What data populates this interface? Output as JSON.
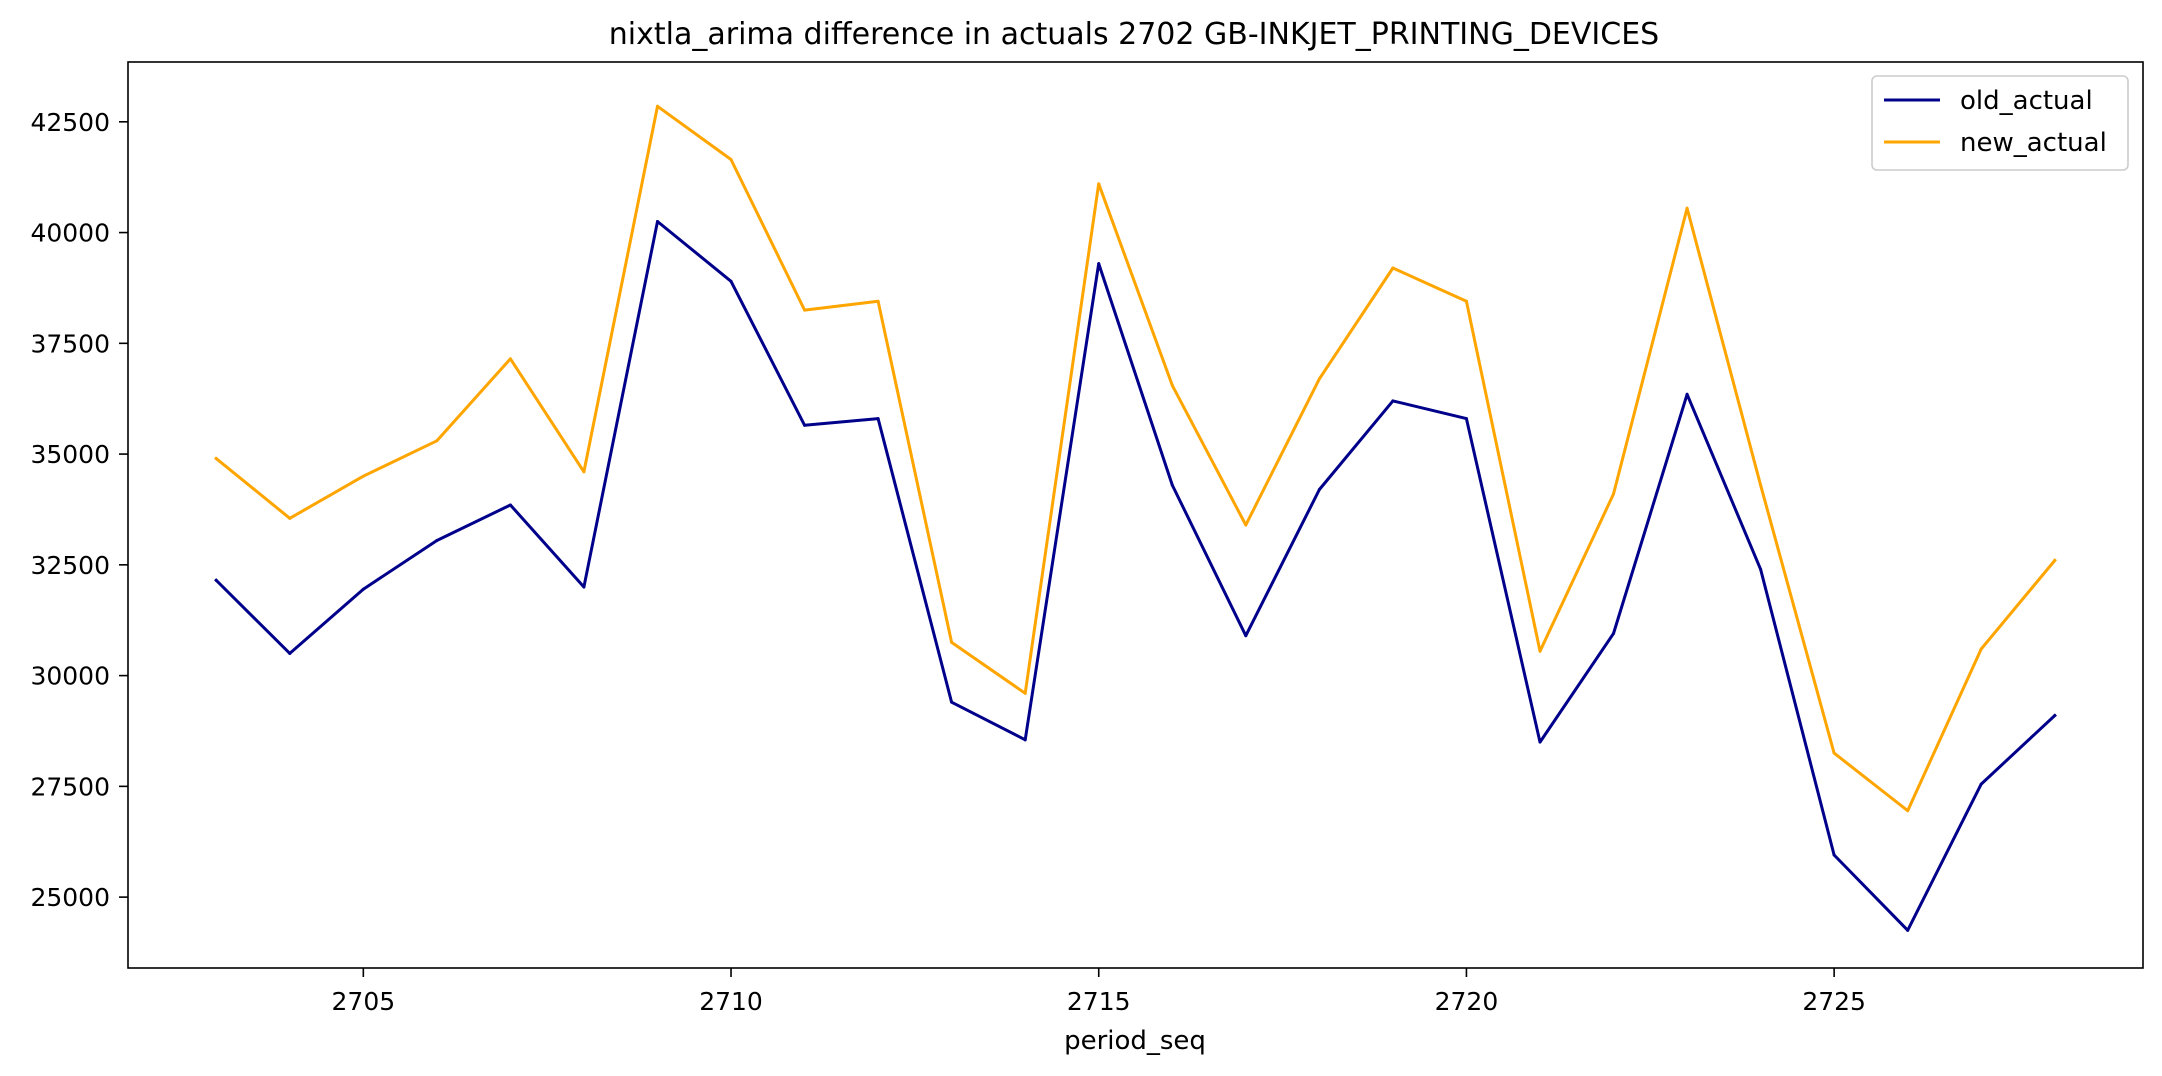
{
  "chart_data": {
    "type": "line",
    "title": "nixtla_arima difference in actuals 2702 GB-INKJET_PRINTING_DEVICES",
    "xlabel": "period_seq",
    "ylabel": "",
    "xlim": [
      2701.8,
      2729.2
    ],
    "ylim": [
      23400,
      43850
    ],
    "xticks": [
      2705,
      2710,
      2715,
      2720,
      2725
    ],
    "yticks": [
      25000,
      27500,
      30000,
      32500,
      35000,
      37500,
      40000,
      42500
    ],
    "grid": false,
    "legend_position": "top-right",
    "x": [
      2703,
      2704,
      2705,
      2706,
      2707,
      2708,
      2709,
      2710,
      2711,
      2712,
      2713,
      2714,
      2715,
      2716,
      2717,
      2718,
      2719,
      2720,
      2721,
      2722,
      2723,
      2724,
      2725,
      2726,
      2727,
      2728
    ],
    "series": [
      {
        "name": "old_actual",
        "color": "#00008b",
        "values": [
          32150,
          30500,
          31950,
          33050,
          33850,
          32000,
          40250,
          38900,
          35650,
          35800,
          29400,
          28550,
          39300,
          34300,
          30900,
          34200,
          36200,
          35800,
          28500,
          30950,
          36350,
          32400,
          25950,
          24250,
          27550,
          29100
        ]
      },
      {
        "name": "new_actual",
        "color": "#ffa500",
        "values": [
          34900,
          33550,
          34500,
          35300,
          37150,
          34600,
          42850,
          41650,
          38250,
          38450,
          30750,
          29600,
          41100,
          36550,
          33400,
          36700,
          39200,
          38450,
          30550,
          34100,
          40550,
          34300,
          28250,
          26950,
          30600,
          32600
        ]
      }
    ]
  }
}
